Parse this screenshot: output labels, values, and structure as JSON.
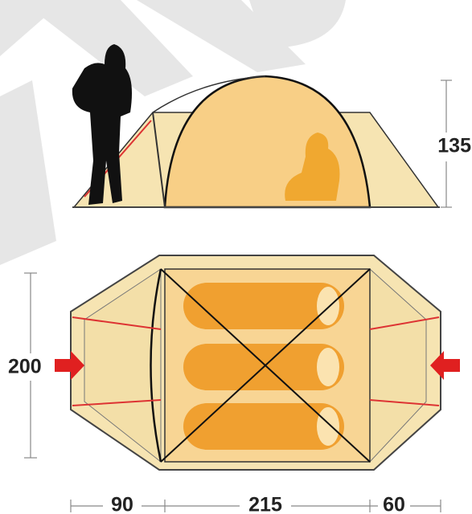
{
  "dimensions": {
    "height": 135,
    "width": 200,
    "front_vestibule": 90,
    "inner_length": 215,
    "rear_vestibule": 60
  }
}
